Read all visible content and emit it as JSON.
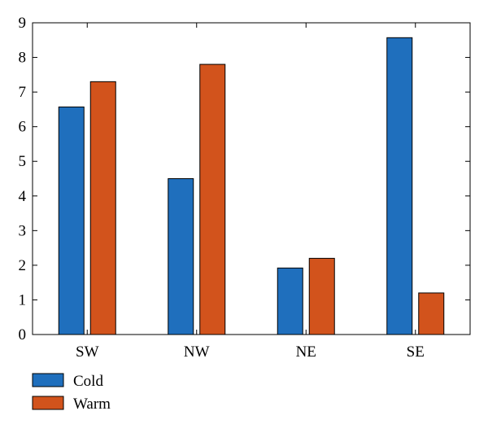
{
  "chart_data": {
    "type": "bar",
    "categories": [
      "SW",
      "NW",
      "NE",
      "SE"
    ],
    "series": [
      {
        "name": "Cold",
        "values": [
          6.57,
          4.5,
          1.92,
          8.57
        ],
        "color": "#1f6fbd"
      },
      {
        "name": "Warm",
        "values": [
          7.3,
          7.8,
          2.2,
          1.2
        ],
        "color": "#d2531c"
      }
    ],
    "ylim": [
      0,
      9
    ],
    "yticks": [
      "0",
      "1",
      "2",
      "3",
      "4",
      "5",
      "6",
      "7",
      "8",
      "9"
    ],
    "title": "",
    "xlabel": "",
    "ylabel": "",
    "grid": false,
    "legend_position": "bottom-left"
  }
}
